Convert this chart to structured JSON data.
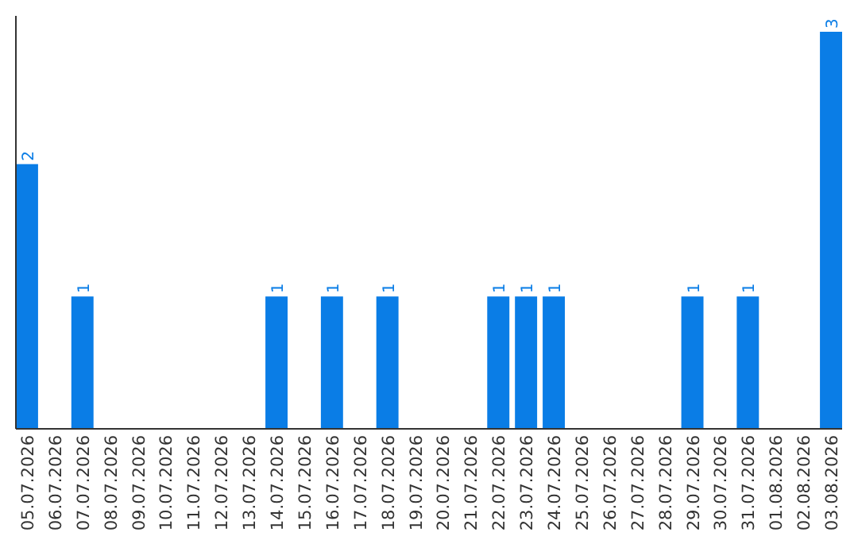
{
  "chart_data": {
    "type": "bar",
    "categories": [
      "05.07.2026",
      "06.07.2026",
      "07.07.2026",
      "08.07.2026",
      "09.07.2026",
      "10.07.2026",
      "11.07.2026",
      "12.07.2026",
      "13.07.2026",
      "14.07.2026",
      "15.07.2026",
      "16.07.2026",
      "17.07.2026",
      "18.07.2026",
      "19.07.2026",
      "20.07.2026",
      "21.07.2026",
      "22.07.2026",
      "23.07.2026",
      "24.07.2026",
      "25.07.2026",
      "26.07.2026",
      "27.07.2026",
      "28.07.2026",
      "29.07.2026",
      "30.07.2026",
      "31.07.2026",
      "01.08.2026",
      "02.08.2026",
      "03.08.2026"
    ],
    "values": [
      2,
      0,
      1,
      0,
      0,
      0,
      0,
      0,
      0,
      1,
      0,
      1,
      0,
      1,
      0,
      0,
      0,
      1,
      1,
      1,
      0,
      0,
      0,
      0,
      1,
      0,
      1,
      0,
      0,
      3
    ],
    "value_labels": [
      "2",
      null,
      "1",
      null,
      null,
      null,
      null,
      null,
      null,
      "1",
      null,
      "1",
      null,
      "1",
      null,
      null,
      null,
      "1",
      "1",
      "1",
      null,
      null,
      null,
      null,
      "1",
      null,
      "1",
      null,
      null,
      "3"
    ],
    "color": "#0a7de6"
  }
}
